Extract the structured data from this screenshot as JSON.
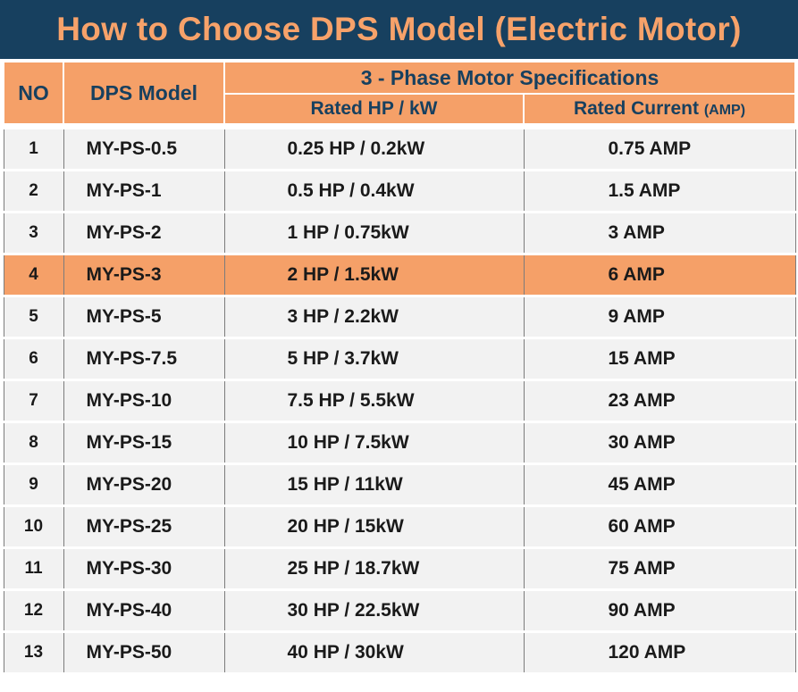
{
  "title": "How to Choose DPS Model (Electric Motor)",
  "headers": {
    "no": "NO",
    "model": "DPS Model",
    "group": "3 - Phase Motor Specifications",
    "rated_hp": "Rated HP / kW",
    "rated_current": "Rated Current",
    "rated_current_unit": "(AMP)"
  },
  "colors": {
    "title_bg": "#17405f",
    "accent_orange": "#f5a068",
    "title_text": "#f7a26a",
    "row_bg": "#f2f2f2"
  },
  "highlighted_row": 3,
  "rows": [
    {
      "no": "1",
      "model": "MY-PS-0.5",
      "hp_kw": "0.25 HP / 0.2kW",
      "current": "0.75 AMP"
    },
    {
      "no": "2",
      "model": "MY-PS-1",
      "hp_kw": "0.5 HP / 0.4kW",
      "current": "1.5 AMP"
    },
    {
      "no": "3",
      "model": "MY-PS-2",
      "hp_kw": "1 HP / 0.75kW",
      "current": "3 AMP"
    },
    {
      "no": "4",
      "model": "MY-PS-3",
      "hp_kw": "2 HP / 1.5kW",
      "current": "6 AMP"
    },
    {
      "no": "5",
      "model": "MY-PS-5",
      "hp_kw": "3 HP / 2.2kW",
      "current": "9 AMP"
    },
    {
      "no": "6",
      "model": "MY-PS-7.5",
      "hp_kw": "5 HP / 3.7kW",
      "current": "15 AMP"
    },
    {
      "no": "7",
      "model": "MY-PS-10",
      "hp_kw": "7.5 HP / 5.5kW",
      "current": "23 AMP"
    },
    {
      "no": "8",
      "model": "MY-PS-15",
      "hp_kw": "10 HP / 7.5kW",
      "current": "30 AMP"
    },
    {
      "no": "9",
      "model": "MY-PS-20",
      "hp_kw": "15 HP / 11kW",
      "current": "45 AMP"
    },
    {
      "no": "10",
      "model": "MY-PS-25",
      "hp_kw": "20 HP / 15kW",
      "current": "60 AMP"
    },
    {
      "no": "11",
      "model": "MY-PS-30",
      "hp_kw": "25 HP / 18.7kW",
      "current": "75 AMP"
    },
    {
      "no": "12",
      "model": "MY-PS-40",
      "hp_kw": "30 HP / 22.5kW",
      "current": "90 AMP"
    },
    {
      "no": "13",
      "model": "MY-PS-50",
      "hp_kw": "40 HP / 30kW",
      "current": "120 AMP"
    }
  ]
}
